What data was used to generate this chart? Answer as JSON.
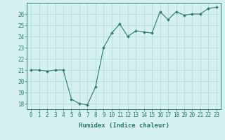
{
  "x": [
    0,
    1,
    2,
    3,
    4,
    5,
    6,
    7,
    8,
    9,
    10,
    11,
    12,
    13,
    14,
    15,
    16,
    17,
    18,
    19,
    20,
    21,
    22,
    23
  ],
  "y": [
    21.0,
    21.0,
    20.9,
    21.0,
    21.0,
    18.4,
    18.0,
    17.9,
    19.5,
    23.0,
    24.3,
    25.1,
    24.0,
    24.5,
    24.4,
    24.3,
    26.2,
    25.5,
    26.2,
    25.9,
    26.0,
    26.0,
    26.5,
    26.6
  ],
  "xlabel": "Humidex (Indice chaleur)",
  "ylim": [
    17.5,
    27.0
  ],
  "xlim": [
    -0.5,
    23.5
  ],
  "yticks": [
    18,
    19,
    20,
    21,
    22,
    23,
    24,
    25,
    26
  ],
  "xticks": [
    0,
    1,
    2,
    3,
    4,
    5,
    6,
    7,
    8,
    9,
    10,
    11,
    12,
    13,
    14,
    15,
    16,
    17,
    18,
    19,
    20,
    21,
    22,
    23
  ],
  "line_color": "#2d7a6e",
  "marker_color": "#2d7a6e",
  "bg_color": "#d4f0f0",
  "grid_color": "#b0d8d8",
  "axes_color": "#2d7a6e",
  "tick_fontsize": 5.5,
  "xlabel_fontsize": 6.5
}
